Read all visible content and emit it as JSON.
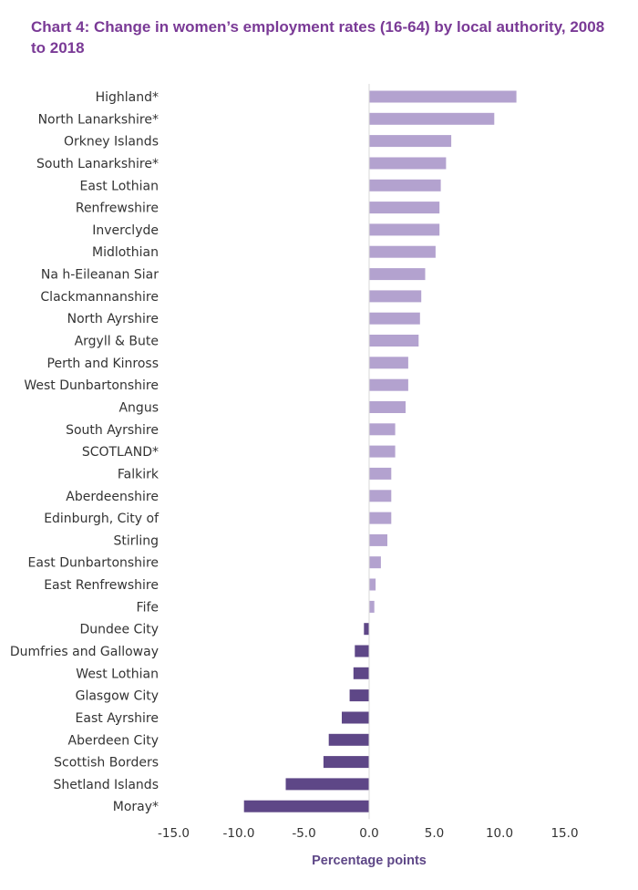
{
  "title": "Chart 4: Change in women’s employment rates (16-64) by local authority, 2008 to 2018",
  "colors": {
    "title": "#7a3a96",
    "positive_bar": "#b3a2cf",
    "negative_bar": "#5e4787",
    "axis_title": "#5e4787",
    "zero_line": "#d9d9d9"
  },
  "chart_data": {
    "type": "bar",
    "orientation": "horizontal",
    "title": "Chart 4: Change in women’s employment rates (16-64) by local authority, 2008 to 2018",
    "xlabel": "Percentage points",
    "ylabel": "",
    "xlim": [
      -15,
      15
    ],
    "xticks": [
      "-15.0",
      "-10.0",
      "-5.0",
      "0.0",
      "5.0",
      "10.0",
      "15.0"
    ],
    "grid": false,
    "categories": [
      "Highland*",
      "North Lanarkshire*",
      "Orkney Islands",
      "South Lanarkshire*",
      "East Lothian",
      "Renfrewshire",
      "Inverclyde",
      "Midlothian",
      "Na h-Eileanan Siar",
      "Clackmannanshire",
      "North Ayrshire",
      "Argyll & Bute",
      "Perth and Kinross",
      "West Dunbartonshire",
      "Angus",
      "South Ayrshire",
      "SCOTLAND*",
      "Falkirk",
      "Aberdeenshire",
      "Edinburgh, City of",
      "Stirling",
      "East Dunbartonshire",
      "East Renfrewshire",
      "Fife",
      "Dundee City",
      "Dumfries and Galloway",
      "West Lothian",
      "Glasgow City",
      "East Ayrshire",
      "Aberdeen City",
      "Scottish Borders",
      "Shetland Islands",
      "Moray*"
    ],
    "values": [
      11.3,
      9.6,
      6.3,
      5.9,
      5.5,
      5.4,
      5.4,
      5.1,
      4.3,
      4.0,
      3.9,
      3.8,
      3.0,
      3.0,
      2.8,
      2.0,
      2.0,
      1.7,
      1.7,
      1.7,
      1.4,
      0.9,
      0.5,
      0.4,
      -0.4,
      -1.1,
      -1.2,
      -1.5,
      -2.1,
      -3.1,
      -3.5,
      -6.4,
      -9.6
    ]
  }
}
